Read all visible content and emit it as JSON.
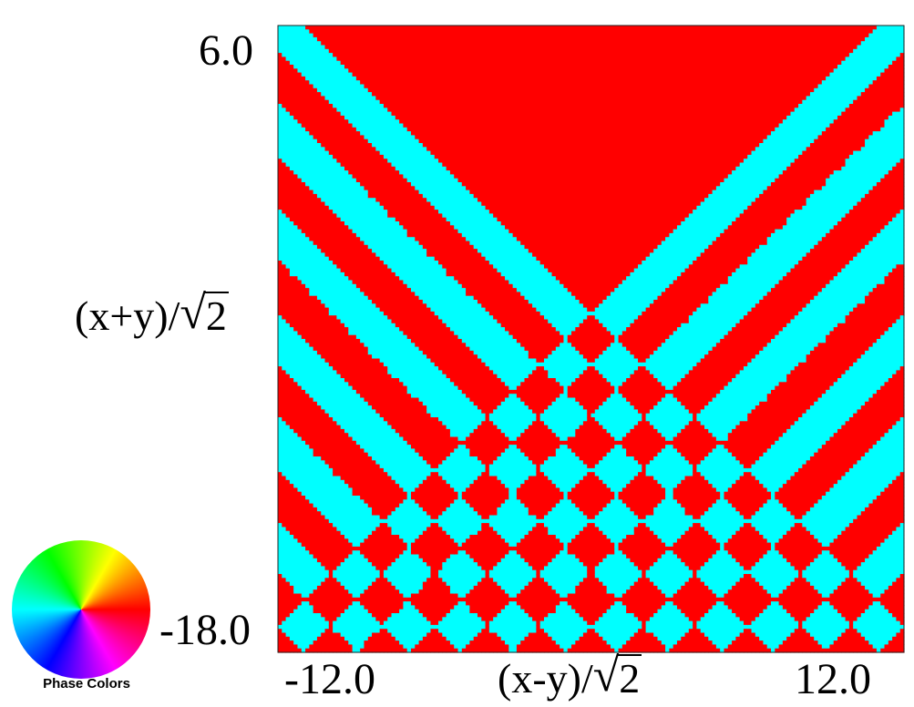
{
  "chart_data": {
    "type": "heatmap",
    "title": "",
    "description_of_values": "binary phase map",
    "x_axis": {
      "label_prefix": "(x-y)/",
      "label_sqrt": "2",
      "range": [
        -12.0,
        12.0
      ],
      "tick_labels": [
        "-12.0",
        "12.0"
      ]
    },
    "y_axis": {
      "label_prefix": "(x+y)/",
      "label_sqrt": "2",
      "range": [
        -18.0,
        6.0
      ],
      "tick_labels": [
        "6.0",
        "-18.0"
      ]
    },
    "colors": {
      "phase_a": "#ff0000",
      "phase_b": "#00ffff"
    },
    "pattern": {
      "vertex": [
        0.0,
        -3.0
      ],
      "band_width": 2.0
    },
    "legend": {
      "label": "Phase Colors",
      "icon": "phase-color-wheel"
    }
  }
}
